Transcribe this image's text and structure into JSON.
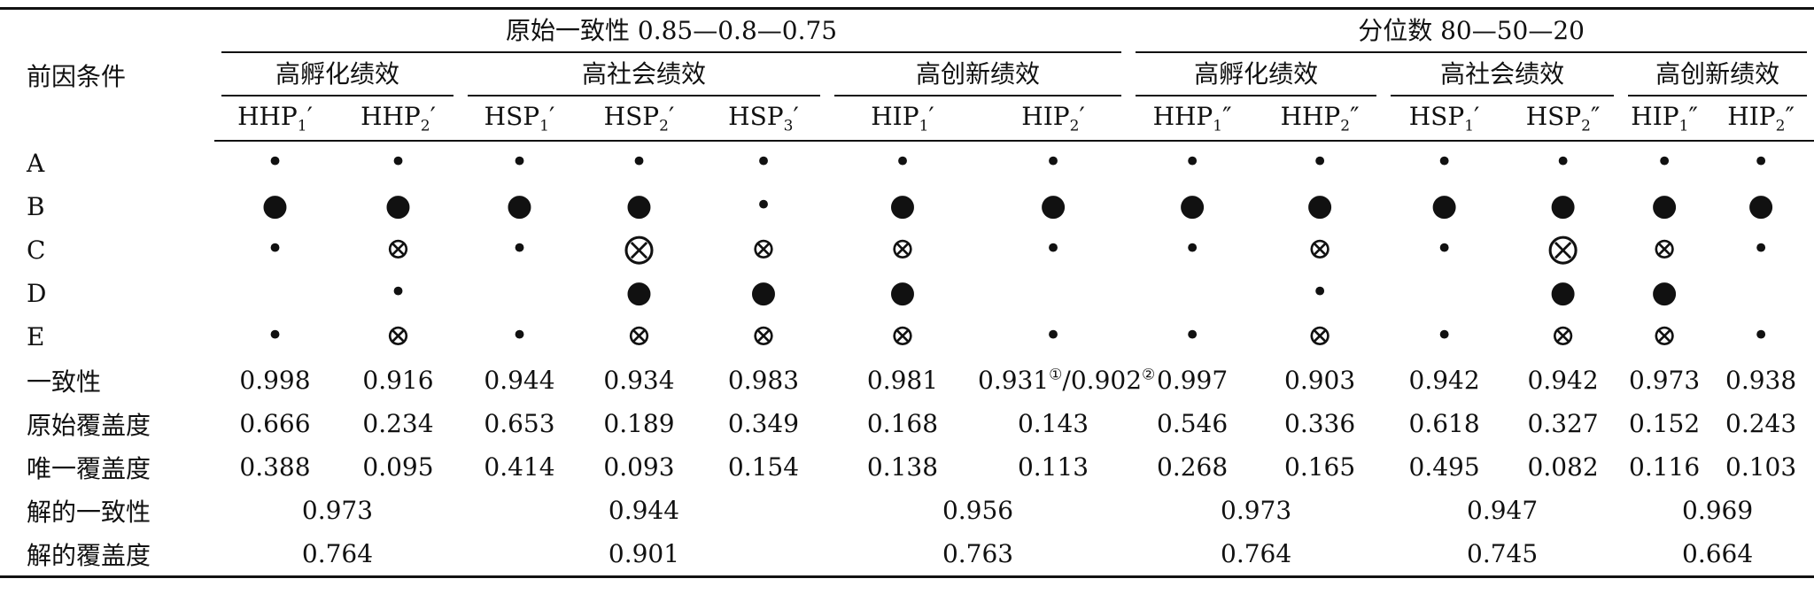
{
  "table": {
    "corner": "前因条件",
    "groups": [
      {
        "title": "原始一致性 0.85—0.8—0.75",
        "outcomes": [
          {
            "title": "高孵化绩效",
            "cols": [
              {
                "base": "HHP",
                "sub": "1",
                "prime": "′"
              },
              {
                "base": "HHP",
                "sub": "2",
                "prime": "′"
              }
            ]
          },
          {
            "title": "高社会绩效",
            "cols": [
              {
                "base": "HSP",
                "sub": "1",
                "prime": "′"
              },
              {
                "base": "HSP",
                "sub": "2",
                "prime": "′"
              },
              {
                "base": "HSP",
                "sub": "3",
                "prime": "′"
              }
            ]
          },
          {
            "title": "高创新绩效",
            "cols": [
              {
                "base": "HIP",
                "sub": "1",
                "prime": "′"
              },
              {
                "base": "HIP",
                "sub": "2",
                "prime": "′"
              }
            ]
          }
        ]
      },
      {
        "title": "分位数 80—50—20",
        "outcomes": [
          {
            "title": "高孵化绩效",
            "cols": [
              {
                "base": "HHP",
                "sub": "1",
                "prime": "″"
              },
              {
                "base": "HHP",
                "sub": "2",
                "prime": "″"
              }
            ]
          },
          {
            "title": "高社会绩效",
            "cols": [
              {
                "base": "HSP",
                "sub": "1",
                "prime": "′"
              },
              {
                "base": "HSP",
                "sub": "2",
                "prime": "″"
              }
            ]
          },
          {
            "title": "高创新绩效",
            "cols": [
              {
                "base": "HIP",
                "sub": "1",
                "prime": "″"
              },
              {
                "base": "HIP",
                "sub": "2",
                "prime": "″"
              }
            ]
          }
        ]
      }
    ],
    "rows": [
      {
        "label": "A",
        "cells": [
          "•",
          "•",
          "•",
          "•",
          "•",
          "•",
          "•",
          "•",
          "•",
          "•",
          "•",
          "•",
          "•"
        ]
      },
      {
        "label": "B",
        "cells": [
          "●",
          "●",
          "●",
          "●",
          "•",
          "●",
          "●",
          "●",
          "●",
          "●",
          "●",
          "●",
          "●"
        ]
      },
      {
        "label": "C",
        "cells": [
          "•",
          "⊗",
          "•",
          "⨂",
          "⊗",
          "⊗",
          "•",
          "•",
          "⊗",
          "•",
          "⨂",
          "⊗",
          "•"
        ]
      },
      {
        "label": "D",
        "cells": [
          null,
          "•",
          null,
          "●",
          "●",
          "●",
          null,
          null,
          "•",
          null,
          "●",
          "●",
          null
        ]
      },
      {
        "label": "E",
        "cells": [
          "•",
          "⊗",
          "•",
          "⊗",
          "⊗",
          "⊗",
          "•",
          "•",
          "⊗",
          "•",
          "⊗",
          "⊗",
          "•"
        ]
      },
      {
        "label": "一致性",
        "cells": [
          "0.998",
          "0.916",
          "0.944",
          "0.934",
          "0.983",
          "0.981",
          [
            "0.931",
            "①",
            "/0.902",
            "②"
          ],
          "0.997",
          "0.903",
          "0.942",
          "0.942",
          "0.973",
          "0.938"
        ]
      },
      {
        "label": "原始覆盖度",
        "cells": [
          "0.666",
          "0.234",
          "0.653",
          "0.189",
          "0.349",
          "0.168",
          "0.143",
          "0.546",
          "0.336",
          "0.618",
          "0.327",
          "0.152",
          "0.243"
        ]
      },
      {
        "label": "唯一覆盖度",
        "cells": [
          "0.388",
          "0.095",
          "0.414",
          "0.093",
          "0.154",
          "0.138",
          "0.113",
          "0.268",
          "0.165",
          "0.495",
          "0.082",
          "0.116",
          "0.103"
        ]
      }
    ],
    "solution_rows": [
      {
        "label": "解的一致性",
        "cells": [
          "0.973",
          "0.944",
          "0.956",
          "0.973",
          "0.947",
          "0.969"
        ]
      },
      {
        "label": "解的覆盖度",
        "cells": [
          "0.764",
          "0.901",
          "0.763",
          "0.764",
          "0.745",
          "0.664"
        ]
      }
    ]
  }
}
